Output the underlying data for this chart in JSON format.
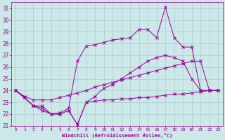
{
  "xlabel": "Windchill (Refroidissement éolien,°C)",
  "xlim": [
    -0.5,
    23.5
  ],
  "ylim": [
    21,
    31.5
  ],
  "yticks": [
    21,
    22,
    23,
    24,
    25,
    26,
    27,
    28,
    29,
    30,
    31
  ],
  "xticks": [
    0,
    1,
    2,
    3,
    4,
    5,
    6,
    7,
    8,
    9,
    10,
    11,
    12,
    13,
    14,
    15,
    16,
    17,
    18,
    19,
    20,
    21,
    22,
    23
  ],
  "bg_color": "#cce8e8",
  "line_color": "#990099",
  "grid_color": "#aacccc",
  "line1_x": [
    0,
    1,
    2,
    3,
    4,
    5,
    6,
    7,
    8,
    9,
    10,
    11,
    12,
    13,
    14,
    15,
    16,
    17,
    18,
    19,
    20,
    21,
    22,
    23
  ],
  "line1_y": [
    24.0,
    23.4,
    22.7,
    22.7,
    22.0,
    22.0,
    22.3,
    21.1,
    23.0,
    23.1,
    23.2,
    23.2,
    23.3,
    23.3,
    23.4,
    23.4,
    23.5,
    23.6,
    23.7,
    23.7,
    23.8,
    23.9,
    24.0,
    24.0
  ],
  "line2_x": [
    0,
    1,
    2,
    3,
    4,
    5,
    6,
    7,
    8,
    9,
    10,
    11,
    12,
    13,
    14,
    15,
    16,
    17,
    18,
    19,
    20,
    21,
    22,
    23
  ],
  "line2_y": [
    24.0,
    23.5,
    23.2,
    23.2,
    23.2,
    23.4,
    23.6,
    23.8,
    24.0,
    24.3,
    24.5,
    24.7,
    24.9,
    25.1,
    25.3,
    25.5,
    25.7,
    25.9,
    26.1,
    26.3,
    26.5,
    26.5,
    24.0,
    24.0
  ],
  "line3_x": [
    0,
    1,
    2,
    3,
    4,
    5,
    6,
    7,
    8,
    9,
    10,
    11,
    12,
    13,
    14,
    15,
    16,
    17,
    18,
    19,
    20,
    21,
    22,
    23
  ],
  "line3_y": [
    24.0,
    23.4,
    22.7,
    22.5,
    22.0,
    22.0,
    22.3,
    21.1,
    23.0,
    23.5,
    24.2,
    24.5,
    25.0,
    25.5,
    26.0,
    26.5,
    26.8,
    27.0,
    26.8,
    26.5,
    25.0,
    24.0,
    24.0,
    24.0
  ],
  "line4_x": [
    0,
    2,
    3,
    4,
    5,
    6,
    7,
    8,
    9,
    10,
    11,
    12,
    13,
    14,
    15,
    16,
    17,
    18,
    19,
    20,
    21,
    22,
    23
  ],
  "line4_y": [
    24.0,
    22.7,
    22.3,
    22.0,
    22.1,
    22.5,
    26.5,
    27.8,
    27.9,
    28.1,
    28.3,
    28.4,
    28.5,
    29.2,
    29.2,
    28.5,
    31.1,
    28.5,
    27.7,
    27.7,
    24.0,
    24.0,
    24.0
  ]
}
